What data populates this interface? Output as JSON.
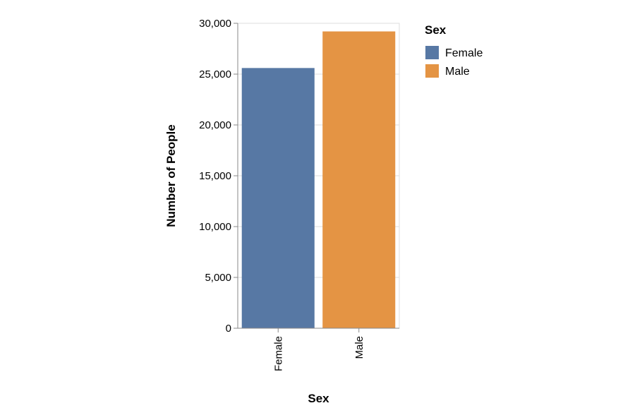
{
  "chart_data": {
    "type": "bar",
    "categories": [
      "Female",
      "Male"
    ],
    "values": [
      25600,
      29200
    ],
    "colors": [
      "#5778a4",
      "#e49444"
    ],
    "xlabel": "Sex",
    "ylabel": "Number of People",
    "ylim": [
      0,
      30000
    ],
    "yticks": [
      "0",
      "5,000",
      "10,000",
      "15,000",
      "20,000",
      "25,000",
      "30,000"
    ],
    "grid": true,
    "legend": {
      "title": "Sex",
      "position": "top-right",
      "items": [
        {
          "label": "Female",
          "color": "#5778a4"
        },
        {
          "label": "Male",
          "color": "#e49444"
        }
      ]
    }
  }
}
